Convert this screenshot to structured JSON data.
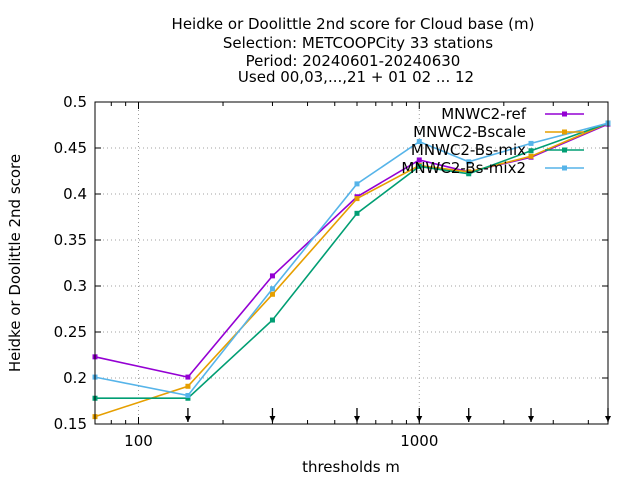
{
  "chart_data": {
    "type": "line",
    "title_lines": [
      "Heidke or Doolittle 2nd score  for Cloud base (m)",
      "Selection: METCOOPCity      33 stations",
      "Period: 20240601-20240630",
      "Used 00,03,...,21 + 01 02 ... 12"
    ],
    "xlabel": "thresholds m",
    "ylabel": "Heidke or Doolittle 2nd score",
    "xscale": "log",
    "xlim": [
      70,
      4700
    ],
    "ylim": [
      0.15,
      0.5
    ],
    "x_ticks": [
      100,
      1000
    ],
    "x_tick_labels": [
      "100",
      "1000"
    ],
    "y_ticks": [
      0.15,
      0.2,
      0.25,
      0.3,
      0.35,
      0.4,
      0.45,
      0.5
    ],
    "y_tick_labels": [
      "0.15",
      "0.2",
      "0.25",
      "0.3",
      "0.35",
      "0.4",
      "0.45",
      "0.5"
    ],
    "grid": true,
    "legend_position": "top-right",
    "x": [
      70,
      150,
      300,
      600,
      1000,
      1500,
      2500,
      4700
    ],
    "threshold_arrows": [
      150,
      300,
      600,
      1000,
      1500,
      2500,
      4700
    ],
    "series": [
      {
        "name": "MNWC2-ref",
        "color": "#9400d3",
        "values": [
          0.223,
          0.201,
          0.311,
          0.397,
          0.437,
          0.424,
          0.44,
          0.476
        ]
      },
      {
        "name": "MNWC2-Bscale",
        "color": "#e69f00",
        "values": [
          0.158,
          0.191,
          0.291,
          0.395,
          0.431,
          0.424,
          0.441,
          0.477
        ]
      },
      {
        "name": "MNWC2-Bs-mix",
        "color": "#009e73",
        "values": [
          0.178,
          0.178,
          0.263,
          0.379,
          0.43,
          0.422,
          0.447,
          0.477
        ]
      },
      {
        "name": "MNWC2-Bs-mix2",
        "color": "#56b4e9",
        "values": [
          0.201,
          0.181,
          0.297,
          0.411,
          0.457,
          0.435,
          0.455,
          0.477
        ]
      }
    ]
  }
}
